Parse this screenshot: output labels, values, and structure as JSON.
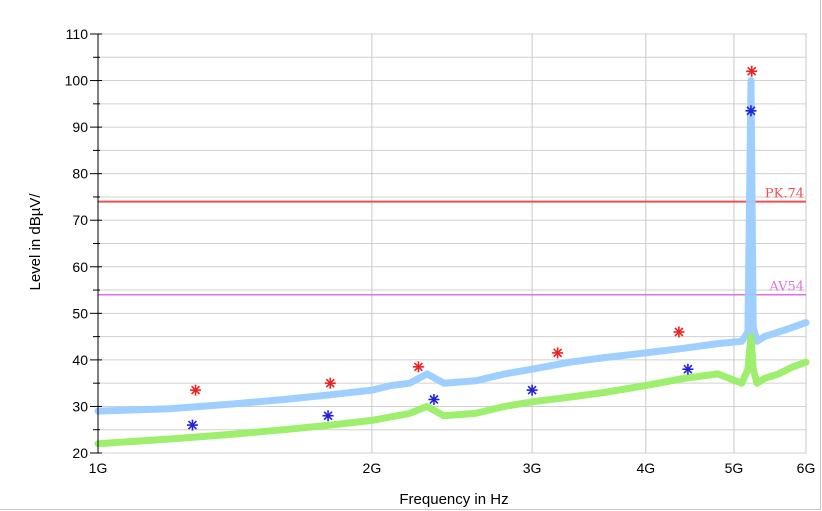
{
  "chart_data": {
    "type": "line",
    "xlabel": "Frequency in Hz",
    "ylabel": "Level in dBµV/",
    "x_scale": "log",
    "xlim": [
      1000000000,
      6000000000
    ],
    "ylim": [
      20,
      110
    ],
    "grid": true,
    "x_ticks": [
      {
        "value": 1000000000,
        "label": "1G"
      },
      {
        "value": 2000000000,
        "label": "2G"
      },
      {
        "value": 3000000000,
        "label": "3G"
      },
      {
        "value": 4000000000,
        "label": "4G"
      },
      {
        "value": 5000000000,
        "label": "5G"
      },
      {
        "value": 6000000000,
        "label": "6G"
      }
    ],
    "y_ticks": [
      20,
      30,
      40,
      50,
      60,
      70,
      80,
      90,
      100,
      110
    ],
    "limit_lines": [
      {
        "label": "PK.74",
        "value": 74,
        "color": "#f05050"
      },
      {
        "label": "AV54",
        "value": 54,
        "color": "#e070e0"
      }
    ],
    "series": [
      {
        "color": "#99ccff",
        "x": [
          1000000000,
          1200000000,
          1400000000,
          1600000000,
          1800000000,
          2000000000,
          2100000000,
          2200000000,
          2300000000,
          2400000000,
          2600000000,
          2800000000,
          3000000000,
          3300000000,
          3600000000,
          4000000000,
          4400000000,
          4800000000,
          5100000000,
          5180000000,
          5220000000,
          5250000000,
          5300000000,
          5400000000,
          5600000000,
          5800000000,
          6000000000
        ],
        "y": [
          29,
          29.5,
          30.5,
          31.5,
          32.5,
          33.5,
          34.5,
          35,
          37,
          35,
          35.5,
          37,
          38,
          39.5,
          40.5,
          41.5,
          42.5,
          43.5,
          44,
          46,
          100,
          47,
          44,
          45,
          46,
          47,
          48
        ]
      },
      {
        "color": "#99ee66",
        "x": [
          1000000000,
          1200000000,
          1400000000,
          1600000000,
          1800000000,
          2000000000,
          2200000000,
          2300000000,
          2400000000,
          2600000000,
          2800000000,
          3000000000,
          3300000000,
          3600000000,
          4000000000,
          4400000000,
          4800000000,
          5100000000,
          5180000000,
          5220000000,
          5250000000,
          5300000000,
          5400000000,
          5600000000,
          5800000000,
          6000000000
        ],
        "y": [
          22,
          23,
          24,
          25,
          26,
          27,
          28.5,
          30,
          28,
          28.5,
          30,
          31,
          32,
          33,
          34.5,
          36,
          37,
          35,
          38,
          45,
          38,
          35,
          36,
          37,
          38.5,
          39.5
        ]
      }
    ],
    "markers": [
      {
        "x": 1280000000,
        "y": 33.5,
        "color": "#ee2020"
      },
      {
        "x": 1270000000,
        "y": 26,
        "color": "#2020dd"
      },
      {
        "x": 1800000000,
        "y": 35,
        "color": "#ee2020"
      },
      {
        "x": 1790000000,
        "y": 28,
        "color": "#2020dd"
      },
      {
        "x": 2250000000,
        "y": 38.5,
        "color": "#ee2020"
      },
      {
        "x": 2340000000,
        "y": 31.5,
        "color": "#2020dd"
      },
      {
        "x": 3200000000,
        "y": 41.5,
        "color": "#ee2020"
      },
      {
        "x": 3000000000,
        "y": 33.5,
        "color": "#2020dd"
      },
      {
        "x": 4350000000,
        "y": 46,
        "color": "#ee2020"
      },
      {
        "x": 4450000000,
        "y": 38,
        "color": "#2020dd"
      },
      {
        "x": 5230000000,
        "y": 102,
        "color": "#ee2020"
      },
      {
        "x": 5220000000,
        "y": 93.5,
        "color": "#2020dd"
      }
    ]
  }
}
